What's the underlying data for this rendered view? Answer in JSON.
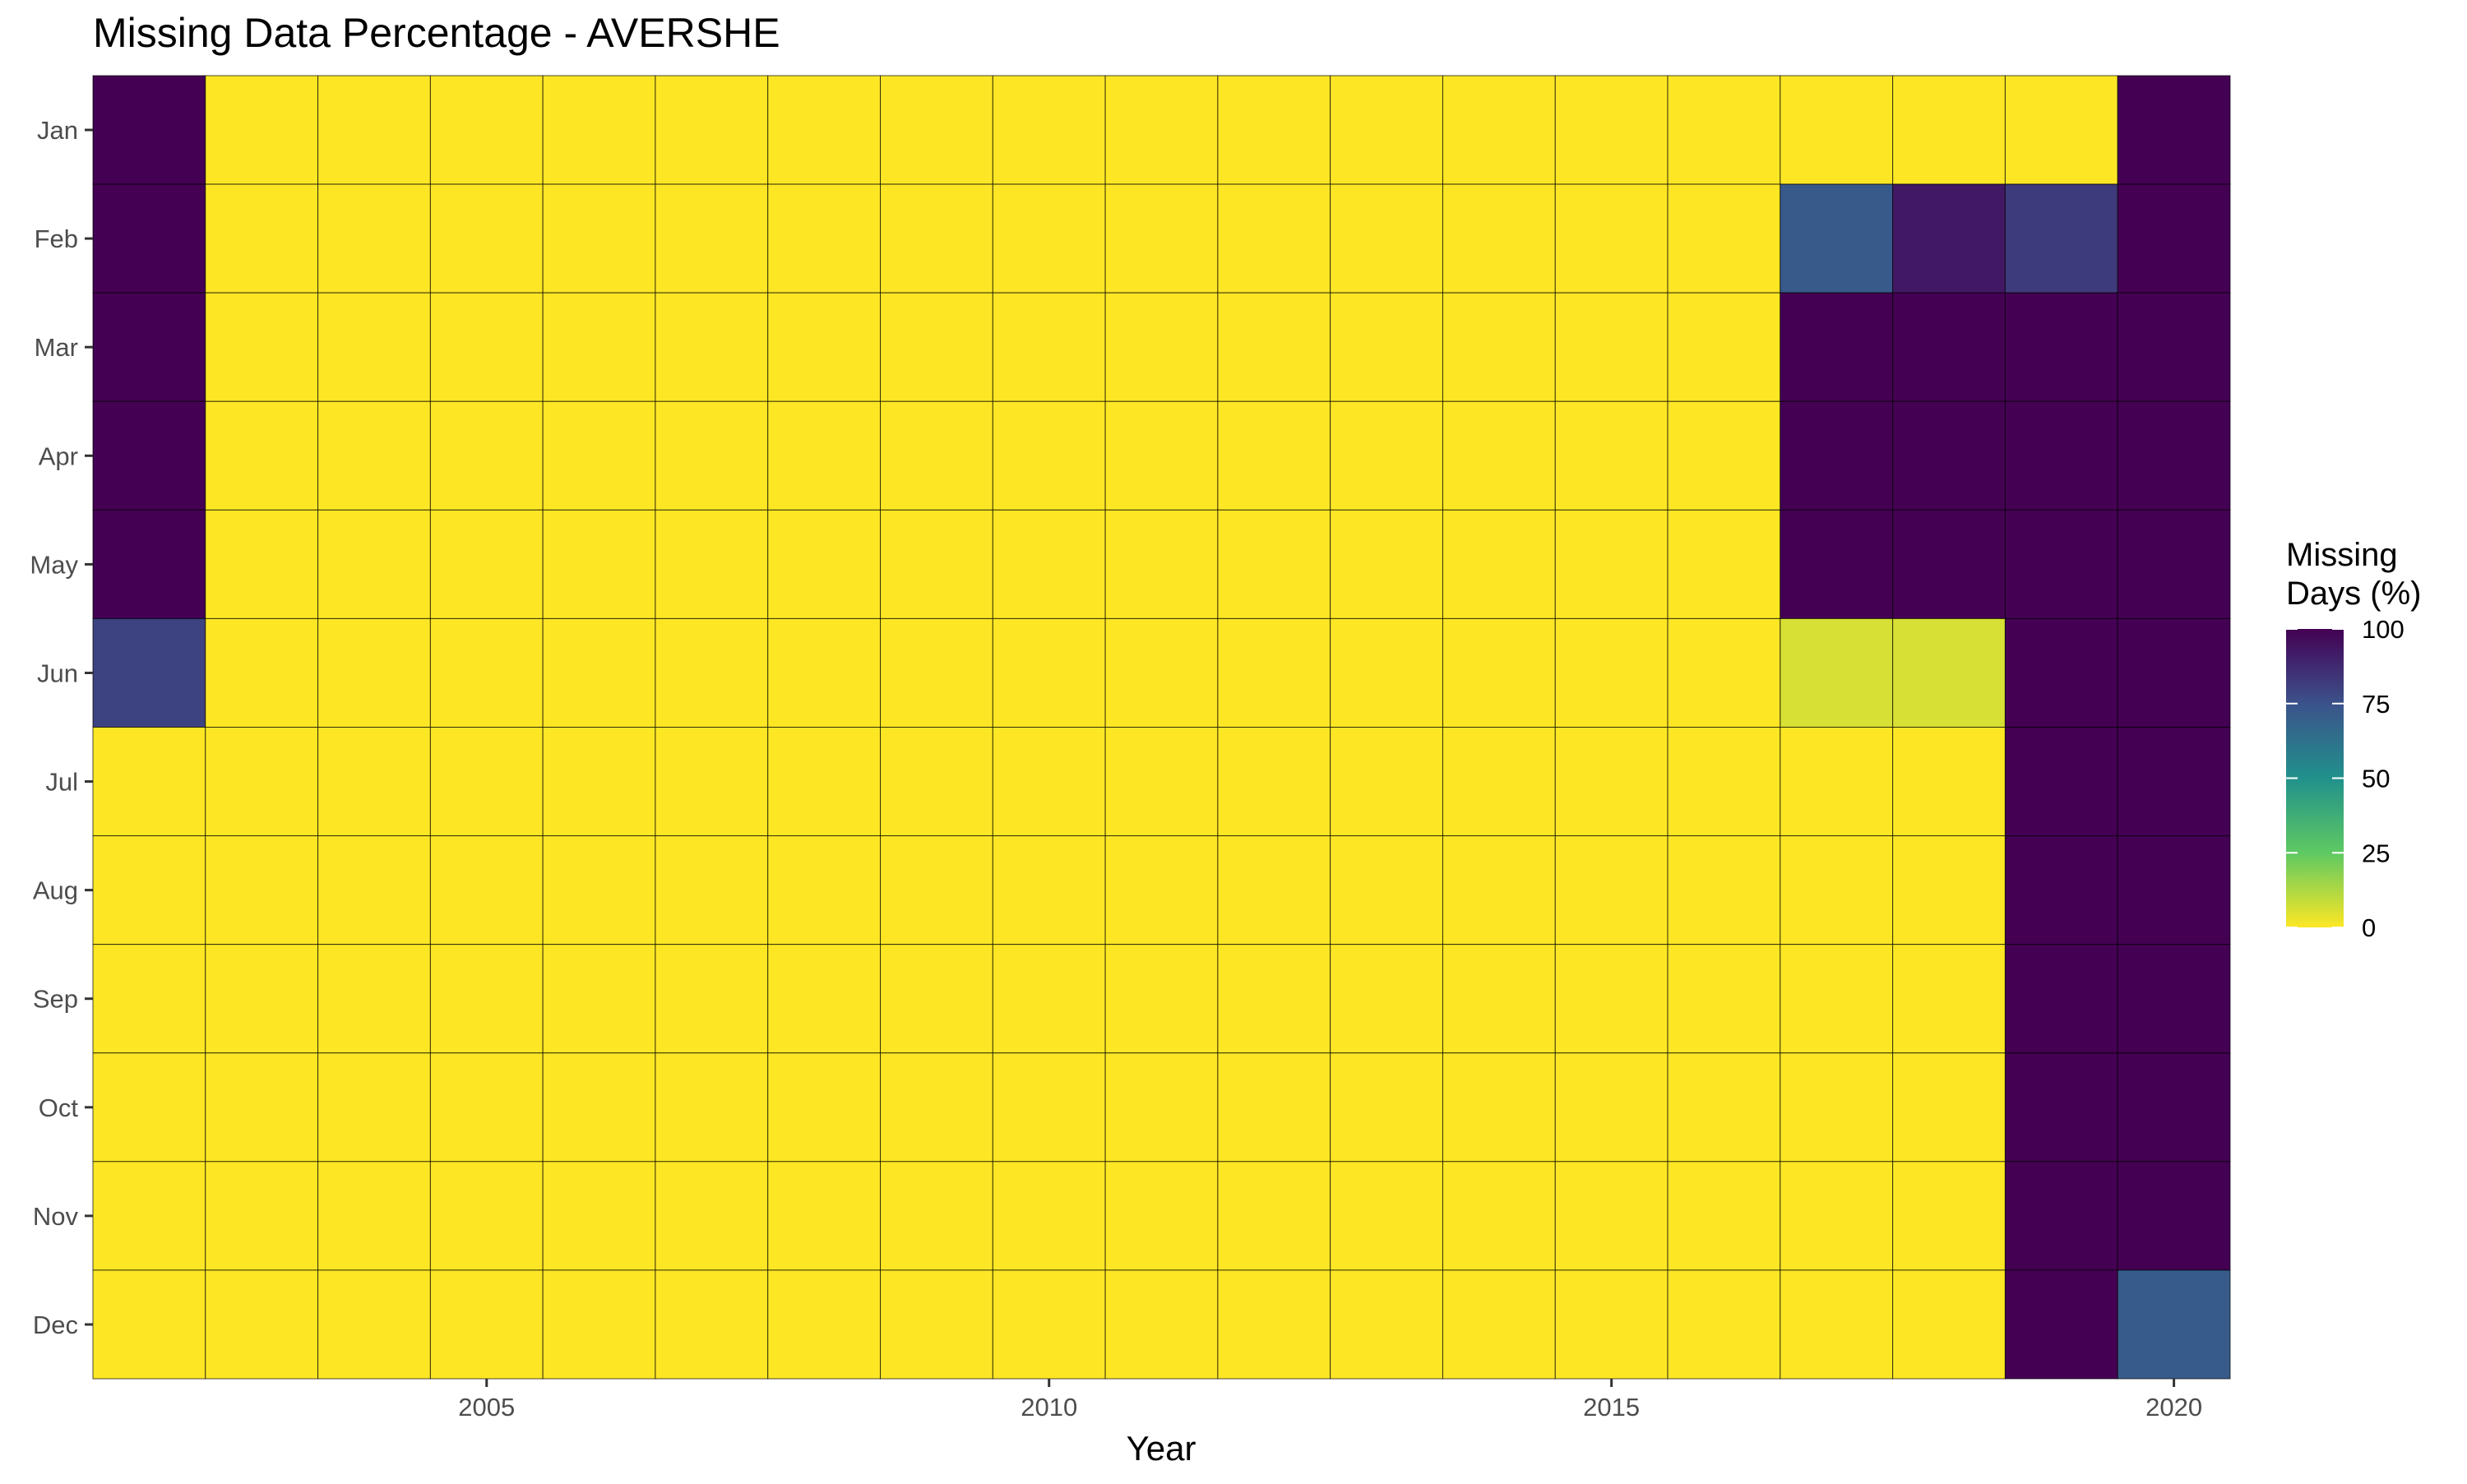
{
  "chart_data": {
    "type": "heatmap",
    "title": "Missing Data Percentage - AVERSHE",
    "xlabel": "Year",
    "ylabel": "",
    "x": [
      2002,
      2003,
      2004,
      2005,
      2006,
      2007,
      2008,
      2009,
      2010,
      2011,
      2012,
      2013,
      2014,
      2015,
      2016,
      2017,
      2018,
      2019,
      2020
    ],
    "x_ticks": [
      "2005",
      "2010",
      "2015",
      "2020"
    ],
    "y": [
      "Jan",
      "Feb",
      "Mar",
      "Apr",
      "May",
      "Jun",
      "Jul",
      "Aug",
      "Sep",
      "Oct",
      "Nov",
      "Dec"
    ],
    "values": [
      [
        100,
        0,
        0,
        0,
        0,
        0,
        0,
        0,
        0,
        0,
        0,
        0,
        0,
        0,
        0,
        0,
        0,
        0,
        100
      ],
      [
        100,
        0,
        0,
        0,
        0,
        0,
        0,
        0,
        0,
        0,
        0,
        0,
        0,
        0,
        0,
        72,
        93,
        82,
        100
      ],
      [
        100,
        0,
        0,
        0,
        0,
        0,
        0,
        0,
        0,
        0,
        0,
        0,
        0,
        0,
        0,
        100,
        100,
        100,
        100
      ],
      [
        100,
        0,
        0,
        0,
        0,
        0,
        0,
        0,
        0,
        0,
        0,
        0,
        0,
        0,
        0,
        100,
        100,
        100,
        100
      ],
      [
        100,
        0,
        0,
        0,
        0,
        0,
        0,
        0,
        0,
        0,
        0,
        0,
        0,
        0,
        0,
        100,
        100,
        100,
        100
      ],
      [
        80,
        0,
        0,
        0,
        0,
        0,
        0,
        0,
        0,
        0,
        0,
        0,
        0,
        0,
        0,
        6,
        6,
        100,
        100
      ],
      [
        0,
        0,
        0,
        0,
        0,
        0,
        0,
        0,
        0,
        0,
        0,
        0,
        0,
        0,
        0,
        0,
        0,
        100,
        100
      ],
      [
        0,
        0,
        0,
        0,
        0,
        0,
        0,
        0,
        0,
        0,
        0,
        0,
        0,
        0,
        0,
        0,
        0,
        100,
        100
      ],
      [
        0,
        0,
        0,
        0,
        0,
        0,
        0,
        0,
        0,
        0,
        0,
        0,
        0,
        0,
        0,
        0,
        0,
        100,
        100
      ],
      [
        0,
        0,
        0,
        0,
        0,
        0,
        0,
        0,
        0,
        0,
        0,
        0,
        0,
        0,
        0,
        0,
        0,
        100,
        100
      ],
      [
        0,
        0,
        0,
        0,
        0,
        0,
        0,
        0,
        0,
        0,
        0,
        0,
        0,
        0,
        0,
        0,
        0,
        100,
        100
      ],
      [
        0,
        0,
        0,
        0,
        0,
        0,
        0,
        0,
        0,
        0,
        0,
        0,
        0,
        0,
        0,
        0,
        0,
        100,
        71
      ]
    ],
    "colorscale": "viridis-reversed",
    "zlim": [
      0,
      100
    ],
    "legend": {
      "title_lines": [
        "Missing",
        "Days (%)"
      ],
      "ticks": [
        "0",
        "25",
        "50",
        "75",
        "100"
      ],
      "placement": "right"
    },
    "grid": false
  }
}
